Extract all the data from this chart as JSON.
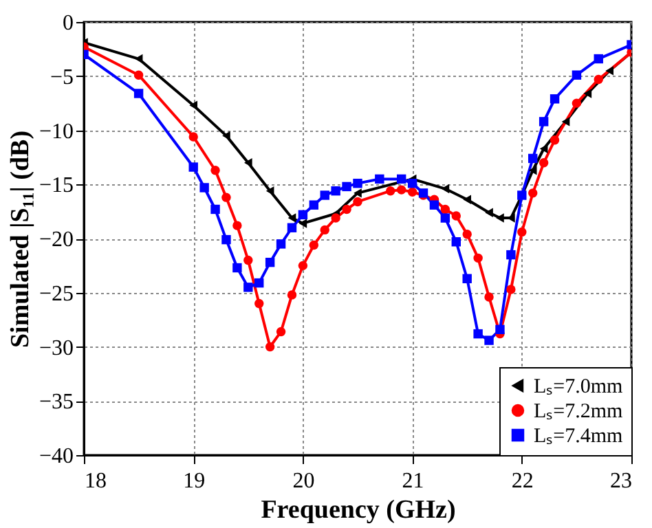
{
  "chart_data": {
    "type": "line",
    "xlabel": "Frequency (GHz)",
    "ylabel": "Simulated |S₁₁| (dB)",
    "xlim": [
      18,
      23
    ],
    "xticks": [
      18,
      19,
      20,
      21,
      22,
      23
    ],
    "ylim": [
      -40,
      0
    ],
    "yticks": [
      -40,
      -35,
      -30,
      -25,
      -20,
      -15,
      -10,
      -5,
      0
    ],
    "grid": true,
    "legend": "bottom right",
    "line_style": "solid",
    "series": [
      {
        "name": "Lₛ=7.0mm",
        "color": "#000000",
        "marker": "triangle",
        "x": [
          18,
          18.5,
          19,
          19.3,
          19.5,
          19.7,
          19.9,
          20,
          20.3,
          20.5,
          21,
          21.3,
          21.5,
          21.7,
          21.8,
          21.9,
          22,
          22.1,
          22.2,
          22.4,
          22.6,
          22.8,
          23
        ],
        "values": [
          -1.9,
          -3.4,
          -7.7,
          -10.5,
          -13,
          -15.6,
          -18.1,
          -18.6,
          -17.7,
          -15.8,
          -14.5,
          -15.4,
          -16.4,
          -17.6,
          -18.1,
          -18.1,
          -16,
          -13.7,
          -11.7,
          -9.2,
          -6.6,
          -4.5,
          -2.8
        ]
      },
      {
        "name": "Lₛ=7.2mm",
        "color": "#ff0000",
        "marker": "circle",
        "x": [
          18,
          18.5,
          19,
          19.2,
          19.3,
          19.4,
          19.5,
          19.6,
          19.7,
          19.8,
          19.9,
          20,
          20.1,
          20.2,
          20.3,
          20.4,
          20.5,
          20.8,
          20.9,
          21,
          21.1,
          21.2,
          21.3,
          21.4,
          21.5,
          21.6,
          21.7,
          21.8,
          21.9,
          22,
          22.1,
          22.2,
          22.3,
          22.5,
          22.7,
          23
        ],
        "values": [
          -2.3,
          -4.9,
          -10.6,
          -13.7,
          -16.2,
          -18.8,
          -22,
          -26,
          -30,
          -28.6,
          -25.2,
          -22.5,
          -20.6,
          -19.2,
          -18.1,
          -17.3,
          -16.6,
          -15.6,
          -15.5,
          -15.7,
          -16,
          -16.4,
          -17.3,
          -17.9,
          -19.6,
          -21.8,
          -25.4,
          -28.8,
          -24.7,
          -19.4,
          -15.8,
          -13,
          -10.9,
          -7.5,
          -5.3,
          -2.8
        ]
      },
      {
        "name": "Lₛ=7.4mm",
        "color": "#0000ff",
        "marker": "square",
        "x": [
          18,
          18.5,
          19,
          19.1,
          19.2,
          19.3,
          19.4,
          19.5,
          19.6,
          19.7,
          19.8,
          19.9,
          20,
          20.1,
          20.2,
          20.3,
          20.4,
          20.5,
          20.7,
          20.9,
          21,
          21.1,
          21.2,
          21.3,
          21.4,
          21.5,
          21.6,
          21.7,
          21.8,
          21.9,
          22,
          22.1,
          22.2,
          22.3,
          22.5,
          22.7,
          23
        ],
        "values": [
          -3,
          -6.6,
          -13.4,
          -15.3,
          -17.3,
          -20.1,
          -22.7,
          -24.5,
          -24.1,
          -22.2,
          -20.5,
          -19,
          -17.8,
          -16.9,
          -16,
          -15.6,
          -15.2,
          -14.9,
          -14.5,
          -14.5,
          -14.9,
          -15.8,
          -16.9,
          -18.1,
          -20.3,
          -23.7,
          -28.8,
          -29.4,
          -28.4,
          -21.5,
          -16,
          -12.6,
          -9.2,
          -7.1,
          -4.9,
          -3.4,
          -2.1
        ]
      }
    ]
  }
}
